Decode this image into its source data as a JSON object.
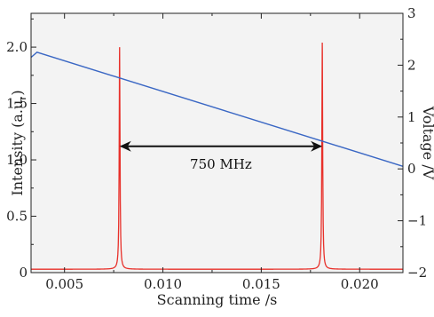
{
  "chart_data": {
    "type": "line",
    "xlabel": "Scanning time /s",
    "ylabel_left": "Intensity (a.u.)",
    "ylabel_right": "Voltage /V",
    "xlim": [
      0.0033,
      0.0222
    ],
    "ylim_left": [
      0,
      2.3
    ],
    "ylim_right": [
      -2,
      3
    ],
    "x_ticks": [
      {
        "value": 0.005,
        "label": "0.005"
      },
      {
        "value": 0.01,
        "label": "0.010"
      },
      {
        "value": 0.015,
        "label": "0.015"
      },
      {
        "value": 0.02,
        "label": "0.020"
      }
    ],
    "y_left_ticks": [
      {
        "value": 0,
        "label": "0"
      },
      {
        "value": 0.5,
        "label": "0.5"
      },
      {
        "value": 1.0,
        "label": "1.0"
      },
      {
        "value": 1.5,
        "label": "1.5"
      },
      {
        "value": 2.0,
        "label": "2.0"
      }
    ],
    "y_right_ticks": [
      {
        "value": -2,
        "label": "−2"
      },
      {
        "value": -1,
        "label": "−1"
      },
      {
        "value": 0,
        "label": "0"
      },
      {
        "value": 1,
        "label": "1"
      },
      {
        "value": 2,
        "label": "2"
      },
      {
        "value": 3,
        "label": "3"
      }
    ],
    "series": [
      {
        "axis": "left",
        "color": "#e8302a",
        "baseline": 0.03,
        "peaks": [
          {
            "x": 0.0078,
            "height": 2.0,
            "half_width": 0.00012
          },
          {
            "x": 0.0181,
            "height": 2.04,
            "half_width": 0.00012
          }
        ]
      },
      {
        "axis": "right",
        "color": "#3a67c4",
        "x": [
          0.0033,
          0.0036,
          0.0222
        ],
        "y": [
          2.15,
          2.25,
          0.05
        ]
      }
    ],
    "annotation": {
      "text": "750 MHz",
      "x_start": 0.0078,
      "x_end": 0.0181,
      "y": 1.12
    }
  }
}
